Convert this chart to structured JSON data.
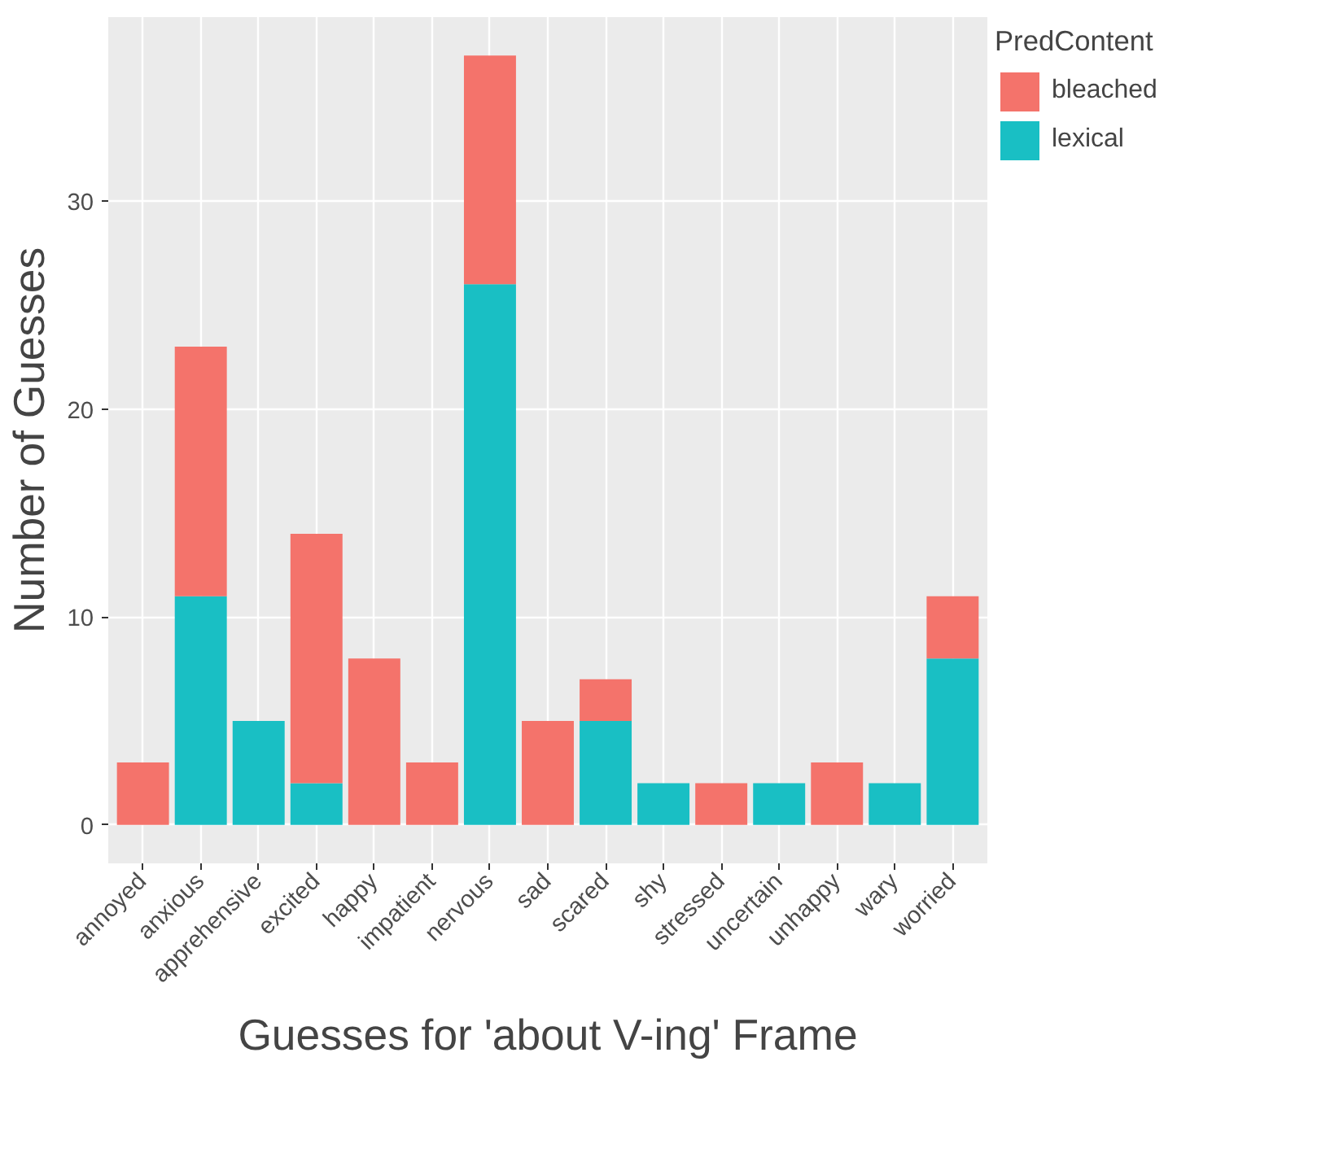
{
  "chart_data": {
    "type": "bar",
    "stacked": true,
    "xlabel": "Guesses for 'about V-ing' Frame",
    "ylabel": "Number of Guesses",
    "legend_title": "PredContent",
    "categories": [
      "annoyed",
      "anxious",
      "apprehensive",
      "excited",
      "happy",
      "impatient",
      "nervous",
      "sad",
      "scared",
      "shy",
      "stressed",
      "uncertain",
      "unhappy",
      "wary",
      "worried"
    ],
    "series": [
      {
        "name": "lexical",
        "color": "#19bfc4",
        "values": [
          0,
          11,
          5,
          2,
          0,
          0,
          26,
          0,
          5,
          2,
          0,
          2,
          0,
          2,
          8
        ]
      },
      {
        "name": "bleached",
        "color": "#f4736b",
        "values": [
          3,
          12,
          0,
          12,
          8,
          3,
          11,
          5,
          2,
          0,
          2,
          0,
          3,
          0,
          3
        ]
      }
    ],
    "ylim": [
      -1.85,
      38.85
    ],
    "yticks": [
      0,
      10,
      20,
      30
    ],
    "grid": true,
    "legend": "right"
  }
}
